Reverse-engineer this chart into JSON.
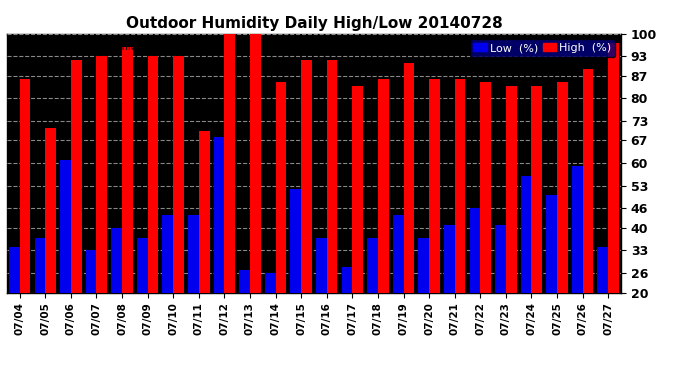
{
  "title": "Outdoor Humidity Daily High/Low 20140728",
  "background_color": "#ffffff",
  "plot_bg_color": "#000000",
  "grid_color": "#888888",
  "categories": [
    "07/04",
    "07/05",
    "07/06",
    "07/07",
    "07/08",
    "07/09",
    "07/10",
    "07/11",
    "07/12",
    "07/13",
    "07/14",
    "07/15",
    "07/16",
    "07/17",
    "07/18",
    "07/19",
    "07/20",
    "07/21",
    "07/22",
    "07/23",
    "07/24",
    "07/25",
    "07/26",
    "07/27"
  ],
  "high_values": [
    86,
    71,
    92,
    93,
    96,
    93,
    93,
    70,
    100,
    100,
    85,
    92,
    92,
    84,
    86,
    91,
    86,
    86,
    85,
    84,
    84,
    85,
    89,
    97
  ],
  "low_values": [
    34,
    37,
    61,
    33,
    40,
    37,
    44,
    44,
    68,
    27,
    26,
    52,
    37,
    28,
    37,
    44,
    37,
    41,
    46,
    41,
    56,
    50,
    59,
    34
  ],
  "high_color": "#ff0000",
  "low_color": "#0000ee",
  "ylim": [
    20,
    100
  ],
  "ybase": 20,
  "yticks": [
    20,
    26,
    33,
    40,
    46,
    53,
    60,
    67,
    73,
    80,
    87,
    93,
    100
  ],
  "bar_width": 0.42,
  "legend_labels": [
    "Low  (%)",
    "High  (%)"
  ],
  "legend_colors": [
    "#0000ee",
    "#ff0000"
  ],
  "legend_bg": "#000080"
}
